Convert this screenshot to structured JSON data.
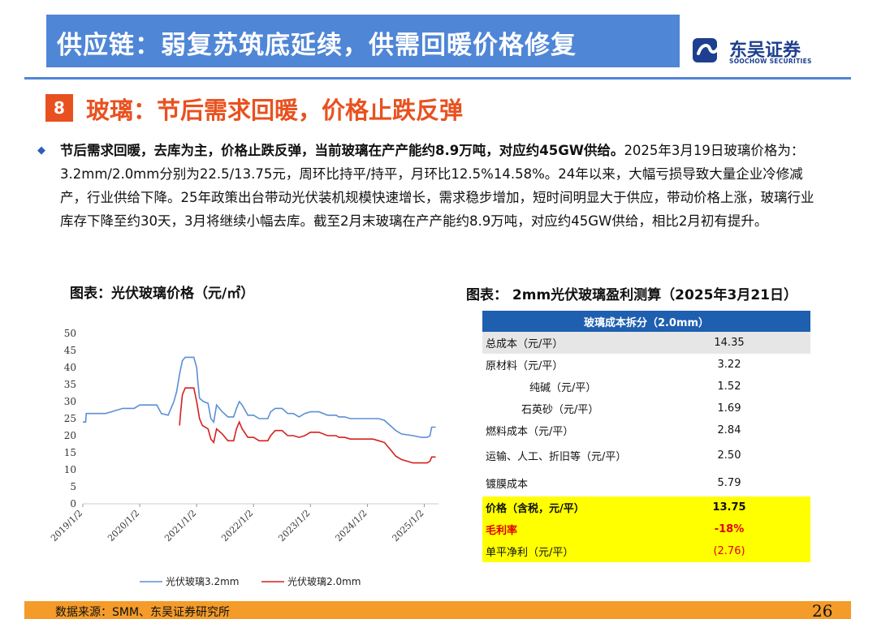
{
  "header": {
    "title": "供应链：弱复苏筑底延续，供需回暖价格修复",
    "logo_cn": "东吴证券",
    "logo_en": "SOOCHOW SECURITIES",
    "accent_color": "#4f86d6"
  },
  "section": {
    "number": "8",
    "title": "玻璃：节后需求回暖，价格止跌反弹",
    "color": "#e8511f"
  },
  "body": {
    "bullet_icon": "diamond-bullet-icon",
    "lead": "节后需求回暖，去库为主，价格止跌反弹，当前玻璃在产产能约8.9万吨，对应约45GW供给。",
    "text": "2025年3月19日玻璃价格为：3.2mm/2.0mm分别为22.5/13.75元，周环比持平/持平，月环比12.5%14.58%。24年以来，大幅亏损导致大量企业冷修减产，行业供给下降。25年政策出台带动光伏装机规模快速增长，需求稳步增加，短时间明显大于供应，带动价格上涨，玻璃行业库存下降至约30天，3月将继续小幅去库。截至2月末玻璃在产产能约8.9万吨，对应约45GW供给，相比2月初有提升。"
  },
  "chart_title": "图表：光伏玻璃价格（元/㎡）",
  "chart_data": {
    "type": "line",
    "ylim": [
      0,
      50
    ],
    "yticks": [
      "50",
      "45",
      "40",
      "35",
      "30",
      "25",
      "20",
      "15",
      "10",
      "5",
      "0"
    ],
    "xlim": [
      2019.0,
      2025.25
    ],
    "xticks": [
      "2019/1/2",
      "2020/1/2",
      "2021/1/2",
      "2022/1/2",
      "2023/1/2",
      "2024/1/2",
      "2025/1/2"
    ],
    "grid": false,
    "legend_position": "bottom",
    "series": [
      {
        "name": "光伏玻璃3.2mm",
        "color": "#5b8fd6",
        "points": [
          [
            2019.0,
            24
          ],
          [
            2019.05,
            24
          ],
          [
            2019.06,
            26.5
          ],
          [
            2019.4,
            26.5
          ],
          [
            2019.5,
            27
          ],
          [
            2019.7,
            28
          ],
          [
            2019.9,
            28
          ],
          [
            2020.0,
            29
          ],
          [
            2020.3,
            29
          ],
          [
            2020.38,
            26.5
          ],
          [
            2020.5,
            26
          ],
          [
            2020.55,
            28
          ],
          [
            2020.6,
            30
          ],
          [
            2020.65,
            33
          ],
          [
            2020.7,
            38
          ],
          [
            2020.75,
            42
          ],
          [
            2020.8,
            43
          ],
          [
            2020.95,
            43
          ],
          [
            2021.0,
            40
          ],
          [
            2021.02,
            36
          ],
          [
            2021.05,
            31
          ],
          [
            2021.12,
            30
          ],
          [
            2021.2,
            29.5
          ],
          [
            2021.25,
            25
          ],
          [
            2021.3,
            24
          ],
          [
            2021.35,
            29
          ],
          [
            2021.45,
            27
          ],
          [
            2021.55,
            25.5
          ],
          [
            2021.65,
            25.5
          ],
          [
            2021.7,
            28
          ],
          [
            2021.75,
            30
          ],
          [
            2021.8,
            29
          ],
          [
            2021.9,
            26
          ],
          [
            2022.0,
            26
          ],
          [
            2022.1,
            25
          ],
          [
            2022.25,
            25
          ],
          [
            2022.3,
            27
          ],
          [
            2022.38,
            28
          ],
          [
            2022.5,
            28
          ],
          [
            2022.6,
            26.5
          ],
          [
            2022.7,
            26.5
          ],
          [
            2022.8,
            25.5
          ],
          [
            2022.9,
            26.5
          ],
          [
            2023.0,
            27
          ],
          [
            2023.15,
            27
          ],
          [
            2023.3,
            26
          ],
          [
            2023.45,
            26
          ],
          [
            2023.5,
            25.5
          ],
          [
            2023.6,
            25.5
          ],
          [
            2023.7,
            25
          ],
          [
            2023.8,
            25
          ],
          [
            2023.95,
            25
          ],
          [
            2024.1,
            25
          ],
          [
            2024.2,
            25
          ],
          [
            2024.3,
            24.5
          ],
          [
            2024.4,
            23
          ],
          [
            2024.5,
            21.5
          ],
          [
            2024.6,
            20.5
          ],
          [
            2024.8,
            20
          ],
          [
            2024.95,
            19.5
          ],
          [
            2025.05,
            19.5
          ],
          [
            2025.1,
            20
          ],
          [
            2025.13,
            22.5
          ],
          [
            2025.2,
            22.5
          ]
        ]
      },
      {
        "name": "光伏玻璃2.0mm",
        "color": "#d61f1f",
        "points": [
          [
            2020.7,
            23
          ],
          [
            2020.72,
            27
          ],
          [
            2020.75,
            32
          ],
          [
            2020.8,
            34
          ],
          [
            2020.95,
            34
          ],
          [
            2021.0,
            30
          ],
          [
            2021.05,
            25
          ],
          [
            2021.1,
            23
          ],
          [
            2021.2,
            22
          ],
          [
            2021.25,
            19
          ],
          [
            2021.3,
            18
          ],
          [
            2021.35,
            22
          ],
          [
            2021.45,
            20.5
          ],
          [
            2021.55,
            18.5
          ],
          [
            2021.65,
            18.5
          ],
          [
            2021.7,
            22
          ],
          [
            2021.75,
            24
          ],
          [
            2021.8,
            22
          ],
          [
            2021.9,
            19.5
          ],
          [
            2022.0,
            19.5
          ],
          [
            2022.1,
            18.5
          ],
          [
            2022.25,
            18.5
          ],
          [
            2022.3,
            20
          ],
          [
            2022.38,
            21.5
          ],
          [
            2022.5,
            21.5
          ],
          [
            2022.6,
            20
          ],
          [
            2022.7,
            20
          ],
          [
            2022.8,
            19.5
          ],
          [
            2022.9,
            20
          ],
          [
            2023.0,
            21
          ],
          [
            2023.15,
            21
          ],
          [
            2023.3,
            20
          ],
          [
            2023.45,
            20
          ],
          [
            2023.5,
            19.5
          ],
          [
            2023.6,
            19.5
          ],
          [
            2023.7,
            19
          ],
          [
            2023.8,
            19
          ],
          [
            2023.95,
            19
          ],
          [
            2024.1,
            19
          ],
          [
            2024.2,
            18.5
          ],
          [
            2024.3,
            18
          ],
          [
            2024.4,
            16
          ],
          [
            2024.5,
            14
          ],
          [
            2024.6,
            13
          ],
          [
            2024.8,
            12
          ],
          [
            2025.05,
            12
          ],
          [
            2025.1,
            12.5
          ],
          [
            2025.13,
            13.75
          ],
          [
            2025.2,
            13.75
          ]
        ]
      }
    ]
  },
  "table_title": "图表： 2mm光伏玻璃盈利测算（2025年3月21日）",
  "table": {
    "header": "玻璃成本拆分（2.0mm）",
    "rows": [
      {
        "label": "总成本（元/平）",
        "value": "14.35"
      },
      {
        "label": "原材料（元/平）",
        "value": "3.22"
      },
      {
        "label": "纯碱（元/平）",
        "value": "1.52"
      },
      {
        "label": "石英砂（元/平）",
        "value": "1.69"
      },
      {
        "label": "燃料成本（元/平）",
        "value": "2.84"
      },
      {
        "label": "运输、人工、折旧等（元/平）",
        "value": "2.50"
      },
      {
        "label": "镀膜成本",
        "value": "5.79"
      },
      {
        "label": "价格（含税，元/平）",
        "value": "13.75"
      },
      {
        "label": "毛利率",
        "value": "-18%"
      },
      {
        "label": "单平净利（元/平）",
        "value": "(2.76)"
      }
    ]
  },
  "footer": {
    "source": "数据来源：SMM、东吴证券研究所",
    "page": "26",
    "color": "#f49b2a"
  }
}
